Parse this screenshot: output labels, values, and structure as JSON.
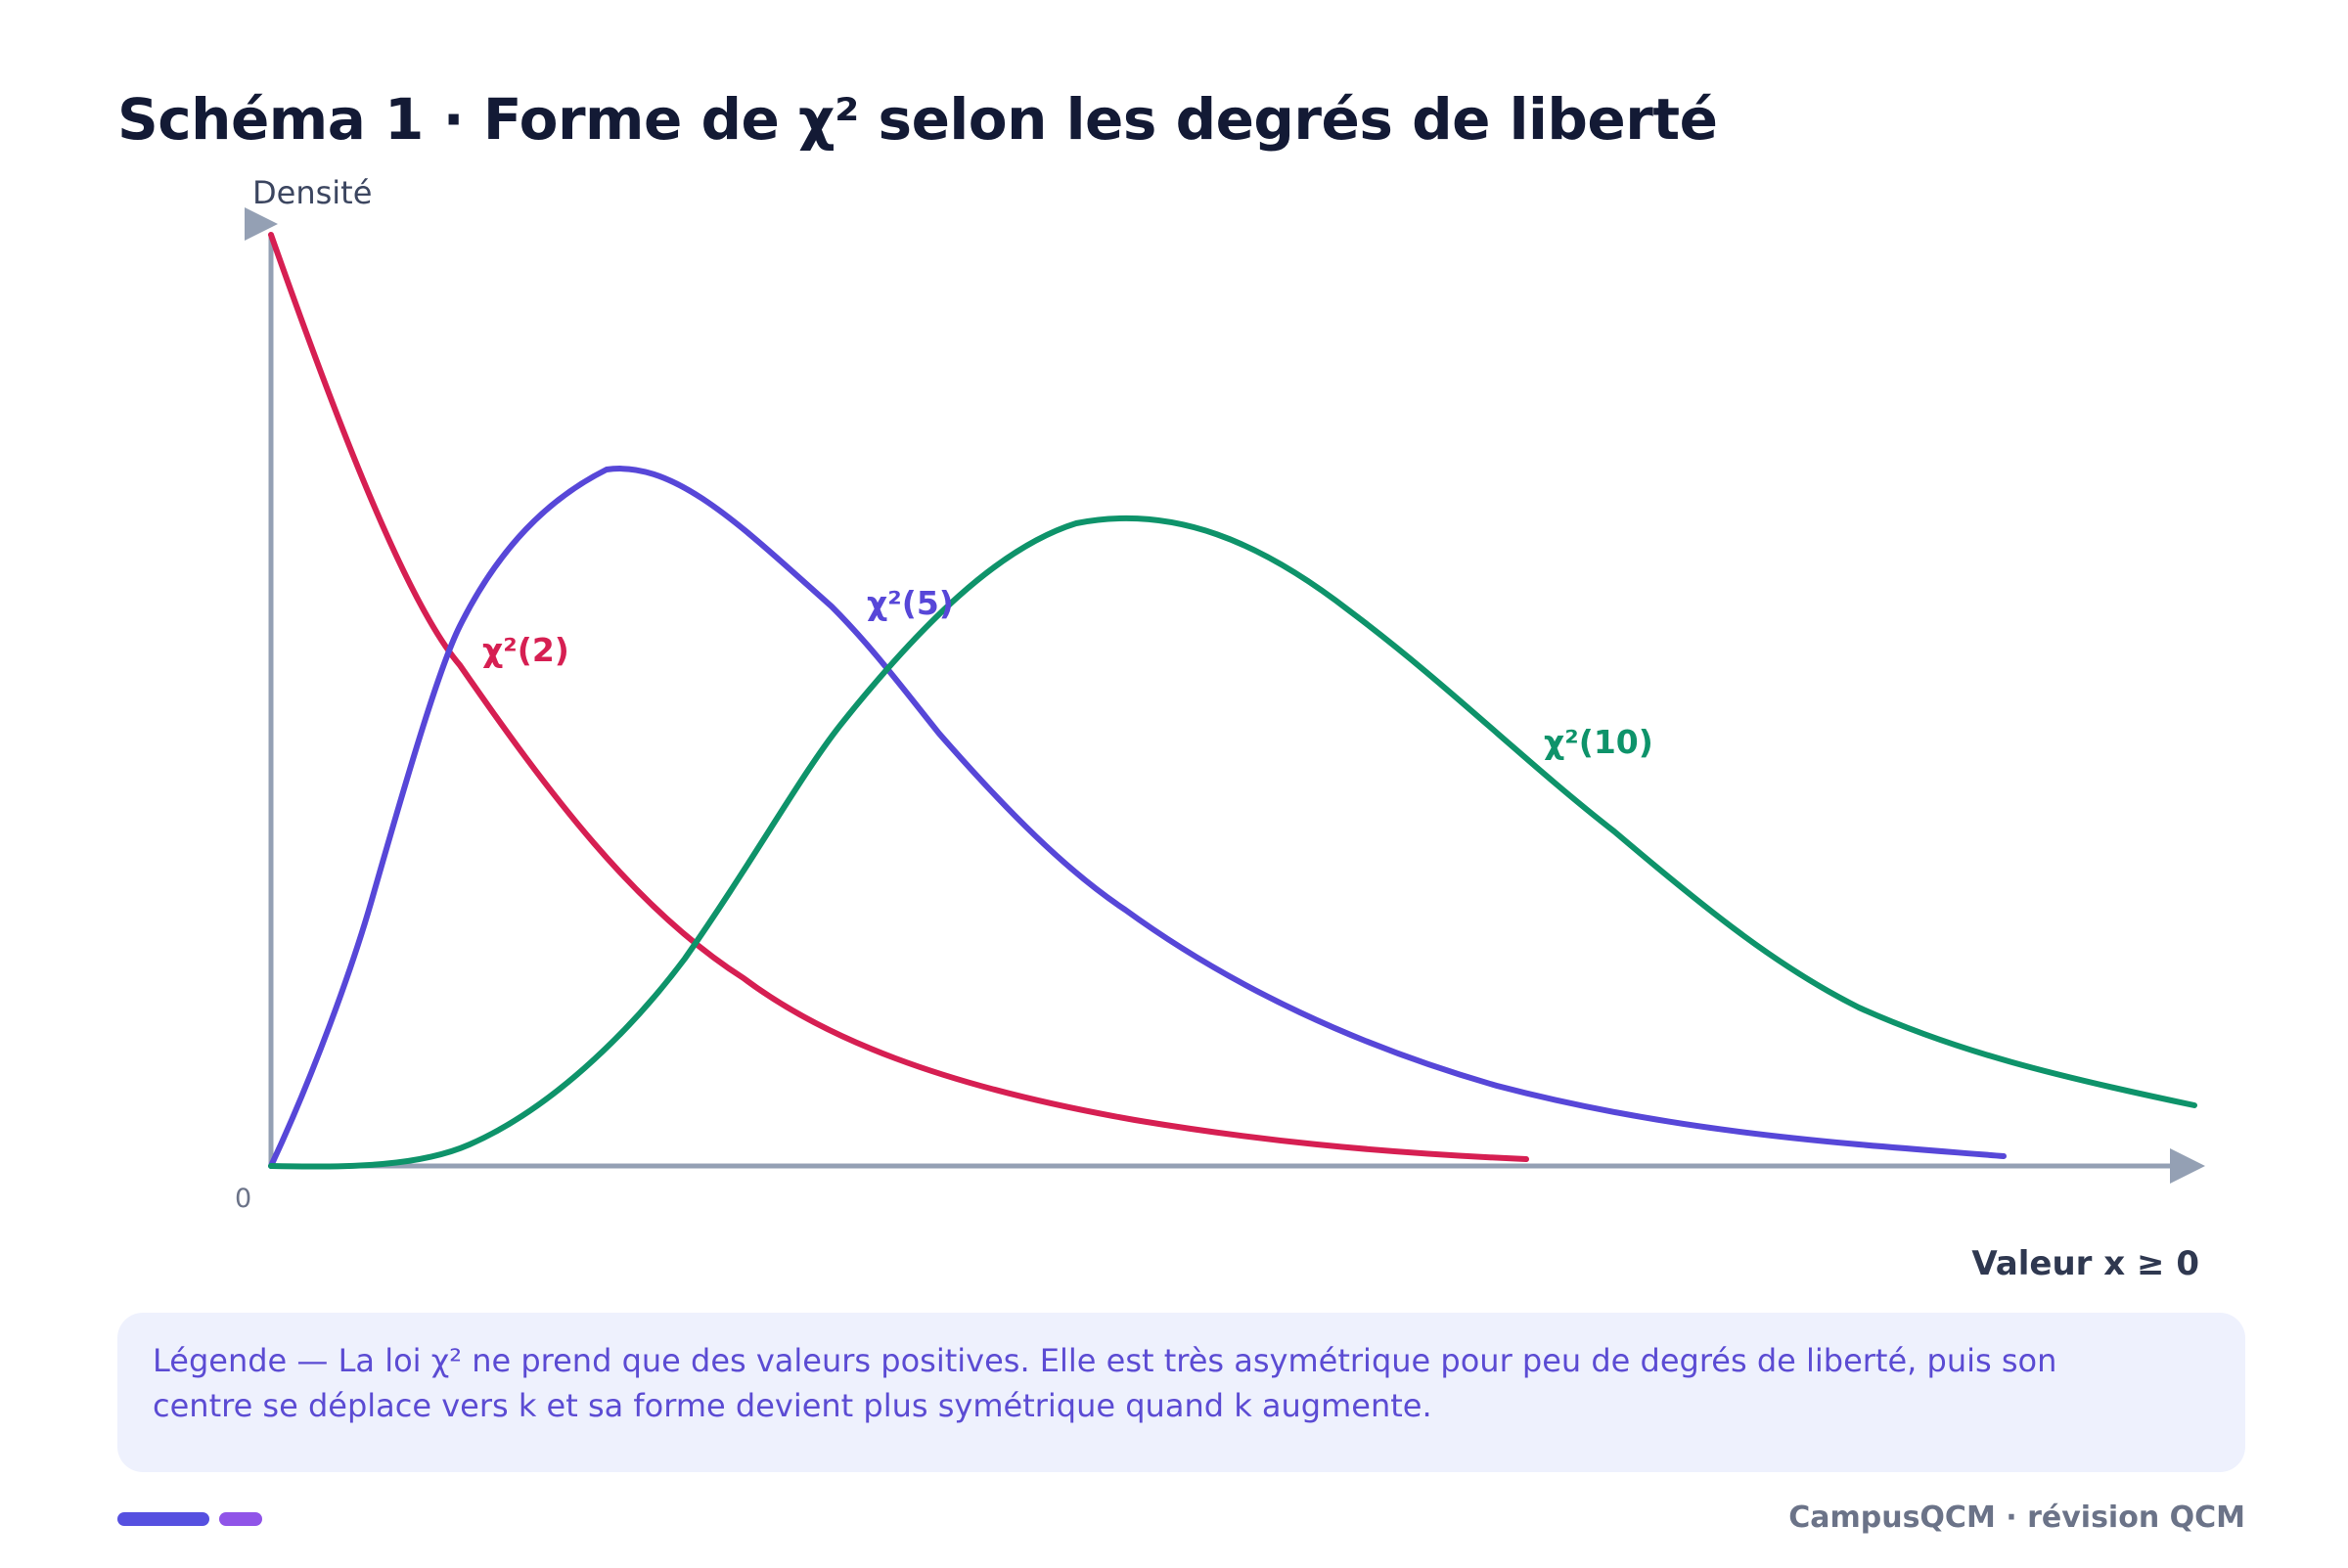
{
  "title": "Schéma 1 · Forme de χ² selon les degrés de liberté",
  "axes": {
    "y_label": "Densité",
    "x_label": "Valeur x ≥ 0",
    "origin_label": "0",
    "color": "#94a0b4"
  },
  "curves": [
    {
      "name": "χ²(2)",
      "k": 2,
      "color": "#d61f52"
    },
    {
      "name": "χ²(5)",
      "k": 5,
      "color": "#5747d8"
    },
    {
      "name": "χ²(10)",
      "k": 10,
      "color": "#0e936a"
    }
  ],
  "caption": "Légende — La loi χ² ne prend que des valeurs positives. Elle est très asymétrique pour peu de degrés de liberté, puis son centre se déplace vers k et sa forme devient plus symétrique quand k augmente.",
  "footer": "CampusQCM · révision QCM",
  "colors": {
    "title": "#131a35",
    "caption_bg": "#eef1fd",
    "caption_text": "#5b4bd3",
    "pill_primary": "#5650e0",
    "pill_secondary": "#9054e8"
  }
}
